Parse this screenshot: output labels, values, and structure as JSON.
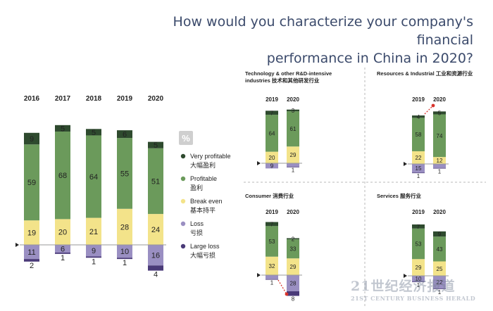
{
  "title_line1": "How would you characterize your company's financial",
  "title_line2": "performance in China in 2020?",
  "pct_badge": "%",
  "colors": {
    "very_profitable": "#2e4a2e",
    "profitable": "#6b9a5b",
    "break_even": "#f3e38a",
    "loss": "#9a8fc2",
    "large_loss": "#4a3a78",
    "dashed": "#d8322b"
  },
  "legend": [
    {
      "key": "very_profitable",
      "en": "Very profitable",
      "cn": "大幅盈利"
    },
    {
      "key": "profitable",
      "en": "Profitable",
      "cn": "盈利"
    },
    {
      "key": "break_even",
      "en": "Break even",
      "cn": "基本持平"
    },
    {
      "key": "loss",
      "en": "Loss",
      "cn": "亏损"
    },
    {
      "key": "large_loss",
      "en": "Large loss",
      "cn": "大幅亏损"
    }
  ],
  "chart_data": [
    {
      "type": "bar",
      "name": "overall",
      "categories": [
        "2016",
        "2017",
        "2018",
        "2019",
        "2020"
      ],
      "series": [
        {
          "key": "very_profitable",
          "values": [
            9,
            5,
            5,
            6,
            5
          ]
        },
        {
          "key": "profitable",
          "values": [
            59,
            68,
            64,
            55,
            51
          ]
        },
        {
          "key": "break_even",
          "values": [
            19,
            20,
            21,
            28,
            24
          ]
        },
        {
          "key": "loss",
          "values": [
            11,
            6,
            9,
            10,
            16
          ]
        },
        {
          "key": "large_loss",
          "values": [
            2,
            1,
            1,
            1,
            4
          ]
        }
      ]
    },
    {
      "type": "bar",
      "title_en": "Technology & other R&D-intensive industries",
      "title_cn": "技术和其他研发行业",
      "categories": [
        "2019",
        "2020"
      ],
      "series": [
        {
          "key": "very_profitable",
          "values": [
            7,
            3
          ]
        },
        {
          "key": "profitable",
          "values": [
            64,
            61
          ]
        },
        {
          "key": "break_even",
          "values": [
            20,
            29
          ]
        },
        {
          "key": "loss",
          "values": [
            9,
            6
          ]
        },
        {
          "key": "large_loss",
          "values": [
            0,
            1
          ]
        }
      ]
    },
    {
      "type": "bar",
      "title_en": "Resources & Industrial",
      "title_cn": "工业和资源行业",
      "categories": [
        "2019",
        "2020"
      ],
      "series": [
        {
          "key": "very_profitable",
          "values": [
            4,
            5
          ]
        },
        {
          "key": "profitable",
          "values": [
            58,
            74
          ]
        },
        {
          "key": "break_even",
          "values": [
            22,
            12
          ]
        },
        {
          "key": "loss",
          "values": [
            15,
            7
          ]
        },
        {
          "key": "large_loss",
          "values": [
            1,
            1
          ]
        }
      ]
    },
    {
      "type": "bar",
      "title_en": "Consumer",
      "title_cn": "消费行业",
      "categories": [
        "2019",
        "2020"
      ],
      "series": [
        {
          "key": "very_profitable",
          "values": [
            7,
            2
          ]
        },
        {
          "key": "profitable",
          "values": [
            53,
            33
          ]
        },
        {
          "key": "break_even",
          "values": [
            32,
            29
          ]
        },
        {
          "key": "loss",
          "values": [
            7,
            28
          ]
        },
        {
          "key": "large_loss",
          "values": [
            1,
            8
          ]
        }
      ]
    },
    {
      "type": "bar",
      "title_en": "Services",
      "title_cn": "服务行业",
      "categories": [
        "2019",
        "2020"
      ],
      "series": [
        {
          "key": "very_profitable",
          "values": [
            7,
            9
          ]
        },
        {
          "key": "profitable",
          "values": [
            53,
            43
          ]
        },
        {
          "key": "break_even",
          "values": [
            29,
            25
          ]
        },
        {
          "key": "loss",
          "values": [
            10,
            22
          ]
        },
        {
          "key": "large_loss",
          "values": [
            1,
            1
          ]
        }
      ]
    }
  ],
  "watermark_cn": "21世纪经济报道",
  "watermark_en": "21ST CENTURY BUSINESS HERALD"
}
